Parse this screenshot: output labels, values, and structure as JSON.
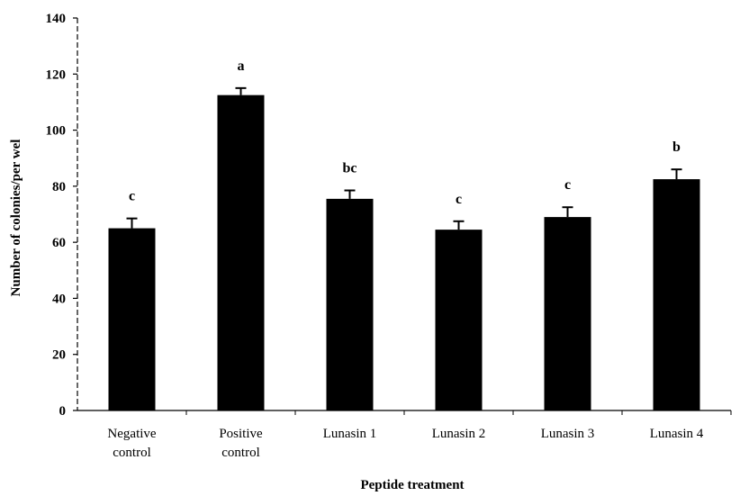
{
  "chart_data": {
    "type": "bar",
    "xlabel": "Peptide treatment",
    "ylabel": "Number of colonies/per wel",
    "ylim": [
      0,
      140
    ],
    "yticks": [
      0,
      20,
      40,
      60,
      80,
      100,
      120,
      140
    ],
    "categories": [
      [
        "Negative",
        "control"
      ],
      [
        "Positive",
        "control"
      ],
      [
        "Lunasin 1"
      ],
      [
        "Lunasin 2"
      ],
      [
        "Lunasin 3"
      ],
      [
        "Lunasin 4"
      ]
    ],
    "values": [
      65,
      112.5,
      75.5,
      64.5,
      69,
      82.5
    ],
    "errors": [
      3.5,
      2.5,
      3,
      3,
      3.5,
      3.5
    ],
    "significance": [
      "c",
      "a",
      "bc",
      "c",
      "c",
      "b"
    ],
    "bar_color": "#000000",
    "grid": false,
    "legend": "none"
  }
}
